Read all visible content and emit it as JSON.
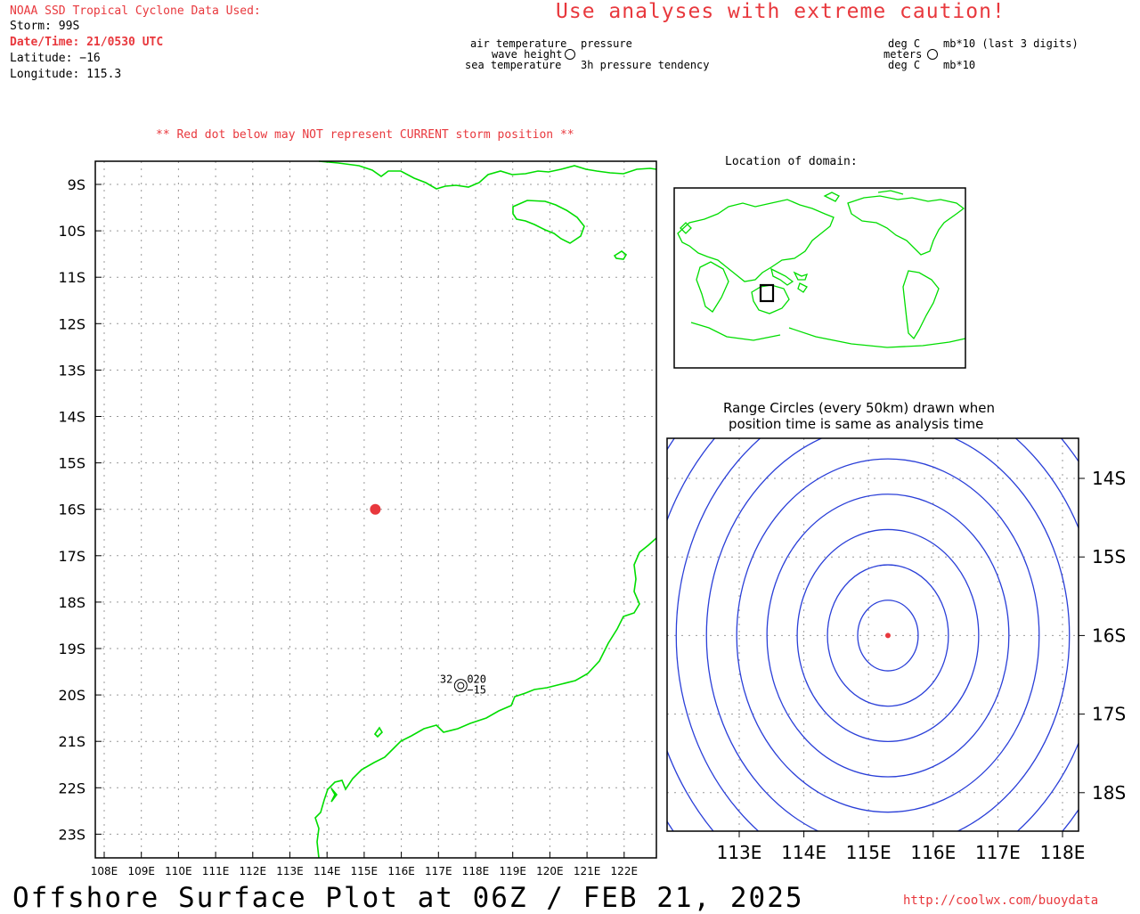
{
  "header": {
    "data_title": "NOAA SSD Tropical Cyclone Data Used:",
    "storm": "Storm: 99S",
    "datetime": "Date/Time: 21/0530 UTC",
    "latitude": "Latitude: −16",
    "longitude": "Longitude: 115.3",
    "caution": "Use analyses with extreme caution!"
  },
  "legend": {
    "air_temperature": "air temperature",
    "wave_height": "wave height",
    "sea_temperature": "sea temperature",
    "pressure": "pressure",
    "pressure_tendency": "3h pressure tendency",
    "unit_air": "deg C",
    "unit_wave": "meters",
    "unit_sea": "deg C",
    "unit_pressure": "mb*10 (last 3 digits)",
    "unit_tendency": "mb*10"
  },
  "main_map": {
    "notice": "** Red dot below may NOT represent CURRENT storm position **",
    "lat_ticks": [
      "9S",
      "10S",
      "11S",
      "12S",
      "13S",
      "14S",
      "15S",
      "16S",
      "17S",
      "18S",
      "19S",
      "20S",
      "21S",
      "22S",
      "23S"
    ],
    "lon_ticks": [
      "108E",
      "109E",
      "110E",
      "111E",
      "112E",
      "113E",
      "114E",
      "115E",
      "116E",
      "117E",
      "118E",
      "119E",
      "120E",
      "121E",
      "122E"
    ],
    "storm_position": {
      "lat": -16,
      "lon": 115.3
    },
    "station": {
      "air_temp": "32",
      "pressure": "020",
      "tendency": "−15",
      "lat": -19.8,
      "lon": 117.6
    }
  },
  "locator": {
    "title": "Location of domain:"
  },
  "range_map": {
    "title_line1": "Range Circles (every 50km) drawn when",
    "title_line2": "position time is same as analysis time",
    "lat_ticks": [
      "14S",
      "15S",
      "16S",
      "17S",
      "18S"
    ],
    "lon_ticks": [
      "113E",
      "114E",
      "115E",
      "116E",
      "117E",
      "118E"
    ],
    "circle_interval_km": 50
  },
  "footer": {
    "title": "Offshore Surface Plot at 06Z / FEB 21, 2025",
    "url": "http://coolwx.com/buoydata"
  },
  "colors": {
    "land": "#00dd00",
    "storm_dot": "#e8383d",
    "range_circle": "#2a3fd8",
    "header_red": "#e8383d"
  }
}
